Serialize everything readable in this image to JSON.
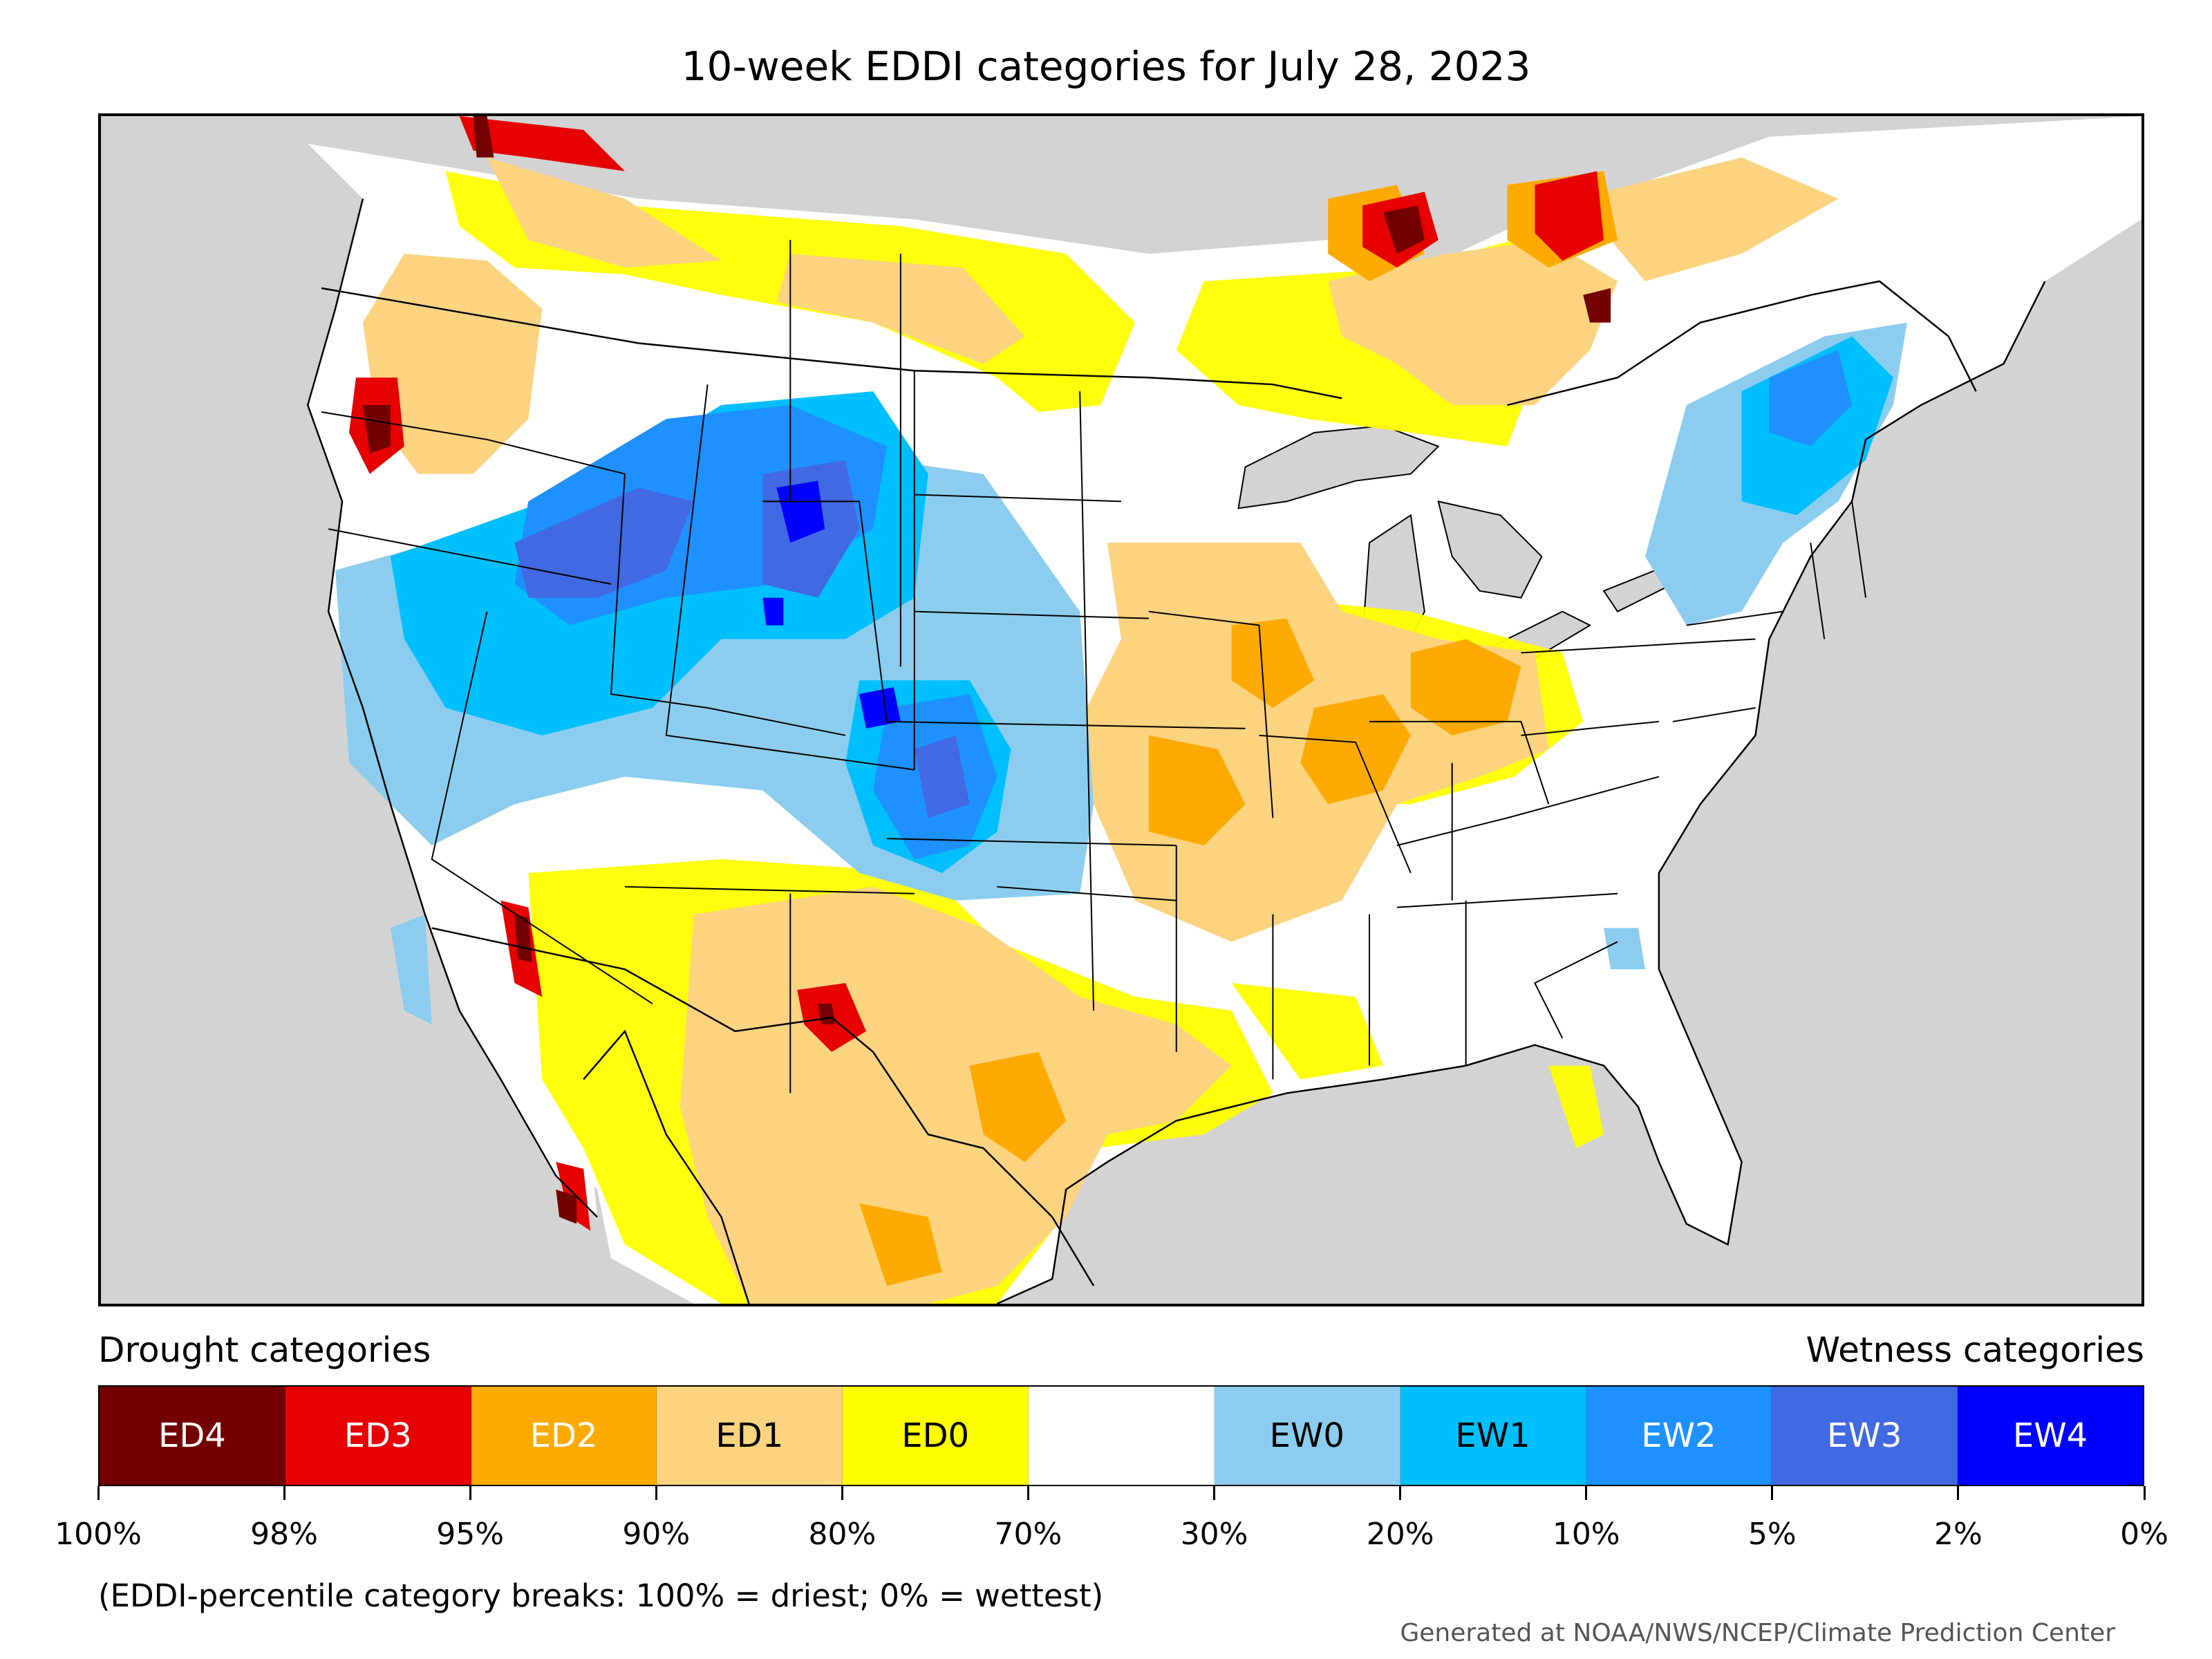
{
  "title": "10-week EDDI categories for July 28, 2023",
  "legend": {
    "drought_heading": "Drought categories",
    "wetness_heading": "Wetness categories",
    "categories": [
      {
        "label": "ED4",
        "color": "#730000",
        "text_color": "#ffffff"
      },
      {
        "label": "ED3",
        "color": "#e60000",
        "text_color": "#ffffff"
      },
      {
        "label": "ED2",
        "color": "#ffaa00",
        "text_color": "#ffffff"
      },
      {
        "label": "ED1",
        "color": "#fcd37f",
        "text_color": "#000000"
      },
      {
        "label": "ED0",
        "color": "#ffff00",
        "text_color": "#000000"
      },
      {
        "label": "",
        "color": "#ffffff",
        "text_color": "#000000"
      },
      {
        "label": "EW0",
        "color": "#8ccdef",
        "text_color": "#000000"
      },
      {
        "label": "EW1",
        "color": "#00bfff",
        "text_color": "#000000"
      },
      {
        "label": "EW2",
        "color": "#1e90ff",
        "text_color": "#ffffff"
      },
      {
        "label": "EW3",
        "color": "#4169e1",
        "text_color": "#ffffff"
      },
      {
        "label": "EW4",
        "color": "#0000ff",
        "text_color": "#ffffff"
      }
    ],
    "tick_labels": [
      "100%",
      "98%",
      "95%",
      "90%",
      "80%",
      "70%",
      "30%",
      "20%",
      "10%",
      "5%",
      "2%",
      "0%"
    ]
  },
  "note": "(EDDI-percentile category breaks: 100% = driest; 0% = wettest)",
  "credit": "Generated at NOAA/NWS/NCEP/Climate Prediction Center"
}
